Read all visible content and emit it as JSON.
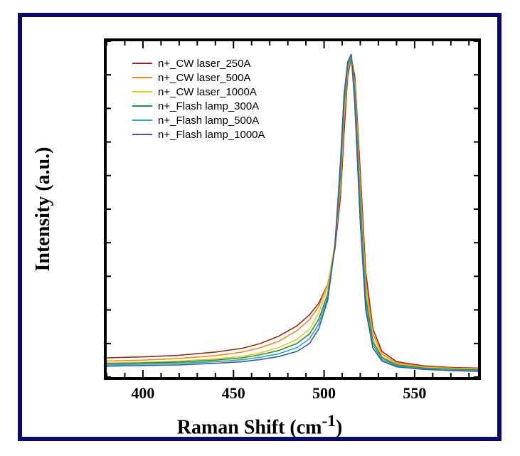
{
  "chart": {
    "type": "line",
    "xlabel": "Raman Shift (cm",
    "xlabel_sup": "-1",
    "xlabel_close": ")",
    "ylabel": "Intensity (a.u.)",
    "label_fontsize": 28,
    "tick_fontsize": 22,
    "font_family_labels": "Times New Roman, serif",
    "font_family_legend": "Arial, Helvetica, sans-serif",
    "legend_fontsize": 15,
    "xlim": [
      380,
      585
    ],
    "ylim": [
      0,
      1.05
    ],
    "xticks": [
      400,
      450,
      500,
      550
    ],
    "inner_tick_len_major": 10,
    "inner_tick_len_minor": 6,
    "minor_tick_step": 10,
    "plot_bg": "#ffffff",
    "panel_border_color": "#0a0a6b",
    "axis_border_color": "#000000",
    "axis_border_width": 4,
    "line_width": 1.6,
    "series": [
      {
        "label": "n+_CW laser_250A",
        "color": "#8b2f1e",
        "points": [
          [
            380,
            0.06
          ],
          [
            400,
            0.063
          ],
          [
            420,
            0.068
          ],
          [
            440,
            0.078
          ],
          [
            455,
            0.09
          ],
          [
            465,
            0.105
          ],
          [
            475,
            0.128
          ],
          [
            485,
            0.16
          ],
          [
            492,
            0.195
          ],
          [
            497,
            0.23
          ],
          [
            502,
            0.29
          ],
          [
            506,
            0.4
          ],
          [
            509,
            0.56
          ],
          [
            511,
            0.76
          ],
          [
            513,
            0.94
          ],
          [
            515,
            1.0
          ],
          [
            517,
            0.94
          ],
          [
            520,
            0.64
          ],
          [
            523,
            0.33
          ],
          [
            527,
            0.15
          ],
          [
            532,
            0.08
          ],
          [
            540,
            0.048
          ],
          [
            555,
            0.035
          ],
          [
            570,
            0.03
          ],
          [
            585,
            0.028
          ]
        ]
      },
      {
        "label": "n+_CW laser_500A",
        "color": "#f08a1d",
        "points": [
          [
            380,
            0.05
          ],
          [
            400,
            0.053
          ],
          [
            420,
            0.058
          ],
          [
            440,
            0.067
          ],
          [
            455,
            0.078
          ],
          [
            465,
            0.092
          ],
          [
            475,
            0.112
          ],
          [
            485,
            0.145
          ],
          [
            492,
            0.18
          ],
          [
            497,
            0.22
          ],
          [
            502,
            0.29
          ],
          [
            506,
            0.41
          ],
          [
            509,
            0.59
          ],
          [
            511,
            0.8
          ],
          [
            513,
            0.96
          ],
          [
            515,
            1.0
          ],
          [
            517,
            0.92
          ],
          [
            520,
            0.6
          ],
          [
            523,
            0.3
          ],
          [
            527,
            0.135
          ],
          [
            532,
            0.072
          ],
          [
            540,
            0.044
          ],
          [
            555,
            0.032
          ],
          [
            570,
            0.028
          ],
          [
            585,
            0.026
          ]
        ]
      },
      {
        "label": "n+_CW laser_1000A",
        "color": "#e8c727",
        "points": [
          [
            380,
            0.044
          ],
          [
            400,
            0.046
          ],
          [
            420,
            0.05
          ],
          [
            440,
            0.057
          ],
          [
            455,
            0.065
          ],
          [
            465,
            0.076
          ],
          [
            475,
            0.092
          ],
          [
            485,
            0.118
          ],
          [
            492,
            0.15
          ],
          [
            497,
            0.2
          ],
          [
            502,
            0.28
          ],
          [
            506,
            0.42
          ],
          [
            509,
            0.62
          ],
          [
            511,
            0.83
          ],
          [
            513,
            0.97
          ],
          [
            515,
            1.0
          ],
          [
            517,
            0.9
          ],
          [
            520,
            0.56
          ],
          [
            523,
            0.27
          ],
          [
            527,
            0.12
          ],
          [
            532,
            0.065
          ],
          [
            540,
            0.04
          ],
          [
            555,
            0.03
          ],
          [
            570,
            0.026
          ],
          [
            585,
            0.024
          ]
        ]
      },
      {
        "label": "n+_Flash lamp_300A",
        "color": "#2e8b3d",
        "points": [
          [
            380,
            0.042
          ],
          [
            400,
            0.044
          ],
          [
            420,
            0.047
          ],
          [
            440,
            0.053
          ],
          [
            455,
            0.06
          ],
          [
            465,
            0.07
          ],
          [
            475,
            0.083
          ],
          [
            485,
            0.105
          ],
          [
            492,
            0.135
          ],
          [
            497,
            0.18
          ],
          [
            502,
            0.26
          ],
          [
            506,
            0.41
          ],
          [
            509,
            0.63
          ],
          [
            511,
            0.85
          ],
          [
            513,
            0.975
          ],
          [
            515,
            1.0
          ],
          [
            517,
            0.89
          ],
          [
            520,
            0.54
          ],
          [
            523,
            0.25
          ],
          [
            527,
            0.11
          ],
          [
            532,
            0.06
          ],
          [
            540,
            0.038
          ],
          [
            555,
            0.028
          ],
          [
            570,
            0.024
          ],
          [
            585,
            0.022
          ]
        ]
      },
      {
        "label": "n+_Flash lamp_500A",
        "color": "#2aa9b8",
        "points": [
          [
            380,
            0.038
          ],
          [
            400,
            0.04
          ],
          [
            420,
            0.043
          ],
          [
            440,
            0.048
          ],
          [
            455,
            0.054
          ],
          [
            465,
            0.062
          ],
          [
            475,
            0.073
          ],
          [
            485,
            0.092
          ],
          [
            492,
            0.12
          ],
          [
            497,
            0.165
          ],
          [
            502,
            0.25
          ],
          [
            506,
            0.41
          ],
          [
            509,
            0.65
          ],
          [
            511,
            0.87
          ],
          [
            513,
            0.98
          ],
          [
            515,
            1.0
          ],
          [
            517,
            0.87
          ],
          [
            520,
            0.51
          ],
          [
            523,
            0.23
          ],
          [
            527,
            0.1
          ],
          [
            532,
            0.055
          ],
          [
            540,
            0.035
          ],
          [
            555,
            0.026
          ],
          [
            570,
            0.022
          ],
          [
            585,
            0.02
          ]
        ]
      },
      {
        "label": "n+_Flash lamp_1000A",
        "color": "#3b5b9a",
        "points": [
          [
            380,
            0.034
          ],
          [
            400,
            0.036
          ],
          [
            420,
            0.038
          ],
          [
            440,
            0.043
          ],
          [
            455,
            0.048
          ],
          [
            465,
            0.055
          ],
          [
            475,
            0.064
          ],
          [
            485,
            0.08
          ],
          [
            492,
            0.105
          ],
          [
            497,
            0.15
          ],
          [
            502,
            0.24
          ],
          [
            506,
            0.41
          ],
          [
            509,
            0.67
          ],
          [
            511,
            0.88
          ],
          [
            513,
            0.985
          ],
          [
            515,
            1.01
          ],
          [
            517,
            0.85
          ],
          [
            520,
            0.48
          ],
          [
            523,
            0.21
          ],
          [
            527,
            0.09
          ],
          [
            532,
            0.05
          ],
          [
            540,
            0.032
          ],
          [
            555,
            0.024
          ],
          [
            570,
            0.02
          ],
          [
            585,
            0.018
          ]
        ]
      }
    ]
  }
}
